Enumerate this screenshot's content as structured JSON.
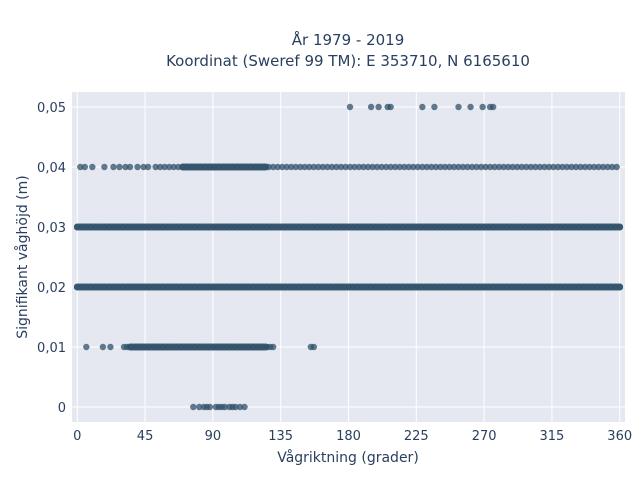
{
  "chart_data": {
    "type": "scatter",
    "title_lines": [
      "År 1979 - 2019",
      "Koordinat (Sweref 99 TM): E 353710, N 6165610"
    ],
    "xlabel": "Vågriktning (grader)",
    "ylabel": "Signifikant våghöjd (m)",
    "xlim": [
      -3.5,
      363.5
    ],
    "ylim": [
      -0.0025,
      0.0525
    ],
    "xticks": [
      0,
      45,
      90,
      135,
      180,
      225,
      270,
      315,
      360
    ],
    "yticks": [
      0,
      0.01,
      0.02,
      0.03,
      0.04,
      0.05
    ],
    "ytick_labels": [
      "0",
      "0,01",
      "0,02",
      "0,03",
      "0,04",
      "0,05"
    ],
    "grid": true,
    "marker_color": "#2f5069",
    "background_color": "#e5e8f0",
    "points": [
      {
        "y": 0.05,
        "x": [
          181,
          195,
          200,
          206,
          208,
          229,
          237,
          253,
          261,
          269,
          274,
          276
        ]
      },
      {
        "y": 0.04,
        "x": [
          2,
          5,
          10,
          18,
          24,
          28,
          32,
          35,
          40,
          44,
          47,
          52,
          55,
          58,
          61,
          64,
          67,
          70,
          73,
          76,
          79,
          82,
          85,
          88,
          91,
          94,
          97,
          100,
          103,
          106,
          109,
          112,
          115,
          118,
          121,
          124,
          127,
          130,
          133,
          136,
          139,
          142,
          145,
          148,
          151,
          154,
          157,
          160,
          163,
          166,
          169,
          172,
          175,
          178,
          181,
          184,
          187,
          190,
          193,
          196,
          199,
          202,
          205,
          208,
          211,
          214,
          217,
          220,
          223,
          226,
          229,
          232,
          235,
          238,
          241,
          244,
          247,
          250,
          253,
          256,
          259,
          262,
          265,
          268,
          271,
          274,
          277,
          280,
          283,
          286,
          289,
          292,
          295,
          298,
          301,
          304,
          307,
          310,
          313,
          316,
          319,
          322,
          325,
          328,
          331,
          334,
          337,
          340,
          343,
          346,
          349,
          352,
          355,
          358
        ]
      },
      {
        "y": 0.03,
        "x": [
          0,
          3,
          6,
          9,
          12,
          15,
          18,
          21,
          24,
          27,
          30,
          33,
          36,
          39,
          42,
          45,
          48,
          51,
          54,
          57,
          60,
          63,
          66,
          69,
          72,
          75,
          78,
          81,
          84,
          87,
          90,
          93,
          96,
          99,
          102,
          105,
          108,
          111,
          114,
          117,
          120,
          123,
          126,
          129,
          132,
          135,
          138,
          141,
          144,
          147,
          150,
          153,
          156,
          159,
          162,
          165,
          168,
          171,
          174,
          177,
          180,
          183,
          186,
          189,
          192,
          195,
          198,
          201,
          204,
          207,
          210,
          213,
          216,
          219,
          222,
          225,
          228,
          231,
          234,
          237,
          240,
          243,
          246,
          249,
          252,
          255,
          258,
          261,
          264,
          267,
          270,
          273,
          276,
          279,
          282,
          285,
          288,
          291,
          294,
          297,
          300,
          303,
          306,
          309,
          312,
          315,
          318,
          321,
          324,
          327,
          330,
          333,
          336,
          339,
          342,
          345,
          348,
          351,
          354,
          357,
          360
        ]
      },
      {
        "y": 0.02,
        "x": [
          0,
          3,
          6,
          9,
          12,
          15,
          18,
          21,
          24,
          27,
          30,
          33,
          36,
          39,
          42,
          45,
          48,
          51,
          54,
          57,
          60,
          63,
          66,
          69,
          72,
          75,
          78,
          81,
          84,
          87,
          90,
          93,
          96,
          99,
          102,
          105,
          108,
          111,
          114,
          117,
          120,
          123,
          126,
          129,
          132,
          135,
          138,
          141,
          144,
          147,
          150,
          153,
          156,
          159,
          162,
          165,
          168,
          171,
          174,
          177,
          180,
          183,
          186,
          189,
          192,
          195,
          198,
          201,
          204,
          207,
          210,
          213,
          216,
          219,
          222,
          225,
          228,
          231,
          234,
          237,
          240,
          243,
          246,
          249,
          252,
          255,
          258,
          261,
          264,
          267,
          270,
          273,
          276,
          279,
          282,
          285,
          288,
          291,
          294,
          297,
          300,
          303,
          306,
          309,
          312,
          315,
          318,
          321,
          324,
          327,
          330,
          333,
          336,
          339,
          342,
          345,
          348,
          351,
          354,
          357,
          360
        ]
      },
      {
        "y": 0.01,
        "x": [
          6,
          17,
          22,
          31,
          33,
          36,
          39,
          42,
          45,
          48,
          51,
          54,
          57,
          60,
          63,
          66,
          69,
          72,
          75,
          78,
          81,
          84,
          87,
          90,
          93,
          96,
          99,
          102,
          105,
          108,
          111,
          114,
          117,
          120,
          123,
          126,
          128,
          130,
          155,
          157
        ]
      },
      {
        "y": 0.0,
        "x": [
          77,
          81,
          84,
          86,
          88,
          92,
          94,
          96,
          98,
          101,
          103,
          105,
          108,
          111
        ]
      }
    ],
    "dense_ranges": [
      {
        "y": 0.04,
        "from": 70,
        "to": 125
      },
      {
        "y": 0.03,
        "from": 0,
        "to": 360
      },
      {
        "y": 0.02,
        "from": 0,
        "to": 360
      },
      {
        "y": 0.01,
        "from": 35,
        "to": 125
      }
    ]
  }
}
